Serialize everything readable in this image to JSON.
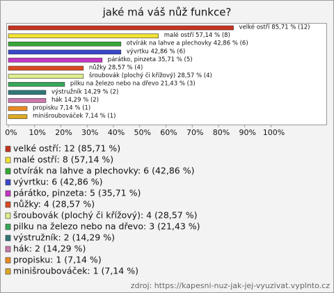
{
  "chart_data": {
    "type": "bar",
    "orientation": "horizontal",
    "title": "jaké má váš nůž funkce?",
    "categories": [
      "velké ostří",
      "malé ostří",
      "otvírák na lahve a plechovky",
      "vývrtku",
      "párátko, pinzeta",
      "nůžky",
      "šroubovák (plochý či křížový)",
      "pilku na železo nebo na dřevo",
      "výstružník",
      "hák",
      "propisku",
      "minišroubováček"
    ],
    "values": [
      85.71,
      57.14,
      42.86,
      42.86,
      35.71,
      28.57,
      28.57,
      21.43,
      14.29,
      14.29,
      7.14,
      7.14
    ],
    "value_labels": [
      "velké ostří 85,71 % (12)",
      "malé ostří 57,14 % (8)",
      "otvírák na lahve a plechovky 42,86 % (6)",
      "vývrtku 42,86 % (6)",
      "párátko, pinzeta 35,71 % (5)",
      "nůžky 28,57 % (4)",
      "šroubovák (plochý či křížový) 28,57 % (4)",
      "pilku na železo nebo na dřevo 21,43 % (3)",
      "výstružník 14,29 % (2)",
      "hák 14,29 % (2)",
      "propisku 7,14 % (1)",
      "minišroubováček 7,14 % (1)"
    ],
    "legend_labels": [
      "velké ostří: 12 (85,71 %)",
      "malé ostří: 8 (57,14 %)",
      "otvírák na lahve a plechovky: 6 (42,86 %)",
      "vývrtku: 6 (42,86 %)",
      "párátko, pinzeta: 5 (35,71 %)",
      "nůžky: 4 (28,57 %)",
      "šroubovák (plochý či křížový): 4 (28,57 %)",
      "pilku na železo nebo na dřevo: 3 (21,43 %)",
      "výstružník: 2 (14,29 %)",
      "hák: 2 (14,29 %)",
      "propisku: 1 (7,14 %)",
      "minišroubováček: 1 (7,14 %)"
    ],
    "colors": [
      "#c8331f",
      "#f2e234",
      "#35a935",
      "#3848cc",
      "#c535c5",
      "#dd4a22",
      "#dfee8c",
      "#36a85a",
      "#2f7878",
      "#cc7aae",
      "#ee8a22",
      "#ddaa24"
    ],
    "xlim": [
      0,
      120
    ],
    "xticks": [
      {
        "value": 0,
        "label": "0%"
      },
      {
        "value": 10,
        "label": "10%"
      },
      {
        "value": 20,
        "label": "20%"
      },
      {
        "value": 30,
        "label": "30%"
      },
      {
        "value": 40,
        "label": "40%"
      },
      {
        "value": 50,
        "label": "50%"
      },
      {
        "value": 60,
        "label": "60%"
      },
      {
        "value": 70,
        "label": "70%"
      },
      {
        "value": 80,
        "label": "80%"
      },
      {
        "value": 90,
        "label": "90%"
      },
      {
        "value": 100,
        "label": "100%"
      }
    ],
    "grid": false,
    "source": "zdroj: https://kapesni-nuz-jak-jej-vyuzivat.vyplnto.cz"
  }
}
